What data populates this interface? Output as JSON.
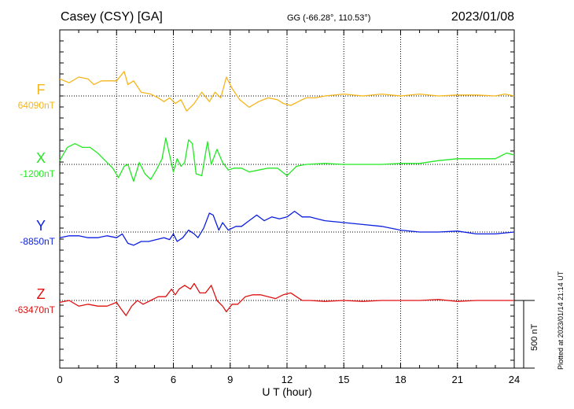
{
  "header": {
    "station": "Casey (CSY)  [GA]",
    "coords": "GG (-66.28°, 110.53°)",
    "date": "2023/01/08"
  },
  "chart_data": {
    "type": "line",
    "xlabel": "U T (hour)",
    "xlim": [
      0,
      24
    ],
    "x_ticks": [
      "0",
      "3",
      "6",
      "9",
      "12",
      "15",
      "18",
      "21",
      "24"
    ],
    "y_scale_bar": "500 nT",
    "plotted_note": "Plotted at 2023/01/14 21:14 UT",
    "series": [
      {
        "name": "F",
        "baseline_label": "64090nT",
        "color": "#f5b51c",
        "x": [
          0,
          0.5,
          1,
          1.5,
          1.8,
          2.2,
          2.6,
          3.0,
          3.4,
          3.6,
          3.9,
          4.3,
          4.8,
          5.2,
          5.5,
          5.8,
          6.1,
          6.4,
          6.7,
          7.1,
          7.5,
          7.9,
          8.2,
          8.5,
          8.8,
          9.1,
          9.5,
          10,
          10.5,
          11,
          11.5,
          11.8,
          12.2,
          12.6,
          13,
          13.5,
          14,
          15,
          16,
          17,
          18,
          19,
          20,
          21,
          22,
          23,
          23.5,
          24
        ],
        "y": [
          0.9,
          0.7,
          1.0,
          0.9,
          0.6,
          0.8,
          0.8,
          0.8,
          1.3,
          0.6,
          0.8,
          0.2,
          0.1,
          -0.1,
          -0.3,
          -0.1,
          -0.4,
          -0.2,
          -0.8,
          -0.4,
          0.2,
          -0.3,
          0.2,
          -0.1,
          1.0,
          0.4,
          -0.2,
          -0.6,
          -0.3,
          -0.1,
          -0.2,
          -0.4,
          -0.5,
          -0.3,
          -0.1,
          -0.1,
          0.0,
          0.1,
          0.0,
          0.1,
          0.0,
          0.1,
          0.0,
          0.05,
          0.05,
          0.0,
          0.1,
          0.0
        ]
      },
      {
        "name": "X",
        "baseline_label": "-1200nT",
        "color": "#22e822",
        "x": [
          0,
          0.4,
          0.8,
          1.2,
          1.6,
          2.0,
          2.4,
          2.8,
          3.1,
          3.4,
          3.6,
          3.9,
          4.2,
          4.5,
          4.8,
          5.1,
          5.4,
          5.6,
          5.8,
          6.0,
          6.2,
          6.4,
          6.6,
          6.8,
          7.0,
          7.2,
          7.5,
          7.8,
          8.0,
          8.3,
          8.6,
          8.9,
          9.2,
          9.6,
          10,
          10.5,
          11,
          11.5,
          12,
          12.2,
          12.5,
          13,
          14,
          15,
          16,
          17,
          18,
          19,
          20,
          21,
          22,
          23,
          23.6,
          24
        ],
        "y": [
          0.2,
          0.9,
          1.1,
          0.9,
          0.9,
          0.6,
          0.2,
          -0.2,
          -0.7,
          -0.1,
          0.0,
          -0.9,
          0.1,
          -0.5,
          -0.8,
          -0.3,
          0.3,
          1.4,
          0.5,
          -0.4,
          0.3,
          -0.1,
          0.1,
          1.3,
          1.1,
          -0.5,
          -0.6,
          1.2,
          0.0,
          0.8,
          0.1,
          -0.3,
          -0.2,
          -0.2,
          -0.4,
          -0.3,
          -0.2,
          -0.2,
          -0.6,
          -0.4,
          -0.1,
          0.0,
          0.05,
          0.0,
          0.0,
          0.0,
          0.05,
          0.05,
          0.2,
          0.3,
          0.3,
          0.3,
          0.6,
          0.5
        ]
      },
      {
        "name": "Y",
        "baseline_label": "-8850nT",
        "color": "#0b1ee0",
        "x": [
          0,
          0.5,
          1,
          1.5,
          2,
          2.5,
          3,
          3.3,
          3.6,
          3.9,
          4.3,
          4.7,
          5.1,
          5.5,
          5.8,
          6.0,
          6.2,
          6.5,
          6.8,
          7.1,
          7.3,
          7.6,
          7.9,
          8.1,
          8.4,
          8.6,
          8.9,
          9.3,
          9.6,
          10,
          10.4,
          10.8,
          11.2,
          11.6,
          12,
          12.4,
          12.8,
          13.2,
          13.6,
          14,
          15,
          16,
          17,
          18,
          19,
          20,
          21,
          22,
          23,
          24
        ],
        "y": [
          -0.3,
          -0.2,
          -0.2,
          -0.3,
          -0.3,
          -0.2,
          -0.3,
          -0.1,
          -0.6,
          -0.7,
          -0.5,
          -0.5,
          -0.4,
          -0.3,
          -0.4,
          -0.1,
          -0.5,
          -0.3,
          0.1,
          -0.1,
          -0.3,
          0.2,
          1.0,
          0.9,
          0.1,
          0.5,
          0.1,
          0.3,
          0.3,
          0.6,
          0.9,
          0.6,
          0.8,
          0.7,
          0.8,
          1.1,
          0.8,
          0.8,
          0.7,
          0.6,
          0.5,
          0.4,
          0.3,
          0.1,
          0.0,
          0.0,
          0.05,
          -0.1,
          -0.1,
          0.0
        ]
      },
      {
        "name": "Z",
        "baseline_label": "-63470nT",
        "color": "#e01010",
        "x": [
          0,
          0.5,
          1,
          1.5,
          2,
          2.5,
          3,
          3.2,
          3.5,
          3.8,
          4.1,
          4.4,
          4.8,
          5.2,
          5.6,
          5.9,
          6.1,
          6.3,
          6.6,
          6.9,
          7.1,
          7.4,
          7.7,
          8.0,
          8.3,
          8.6,
          8.8,
          9.1,
          9.4,
          9.8,
          10.2,
          10.6,
          11,
          11.4,
          11.8,
          12.2,
          12.5,
          12.8,
          13.2,
          14,
          15,
          16,
          17,
          18,
          19,
          20,
          21,
          22,
          23,
          24
        ],
        "y": [
          -0.1,
          0.0,
          -0.3,
          -0.2,
          -0.3,
          -0.3,
          -0.1,
          -0.4,
          -0.8,
          -0.3,
          0.0,
          -0.2,
          0.0,
          0.2,
          0.2,
          0.6,
          0.3,
          0.6,
          0.8,
          0.6,
          0.9,
          0.4,
          0.4,
          0.8,
          0.0,
          -0.3,
          -0.6,
          -0.2,
          -0.2,
          0.2,
          0.3,
          0.3,
          0.2,
          0.1,
          0.3,
          0.4,
          0.2,
          0.0,
          0.0,
          -0.05,
          0.0,
          -0.05,
          0.0,
          0.0,
          0.0,
          0.05,
          -0.05,
          0.0,
          0.0,
          0.0
        ]
      }
    ]
  }
}
